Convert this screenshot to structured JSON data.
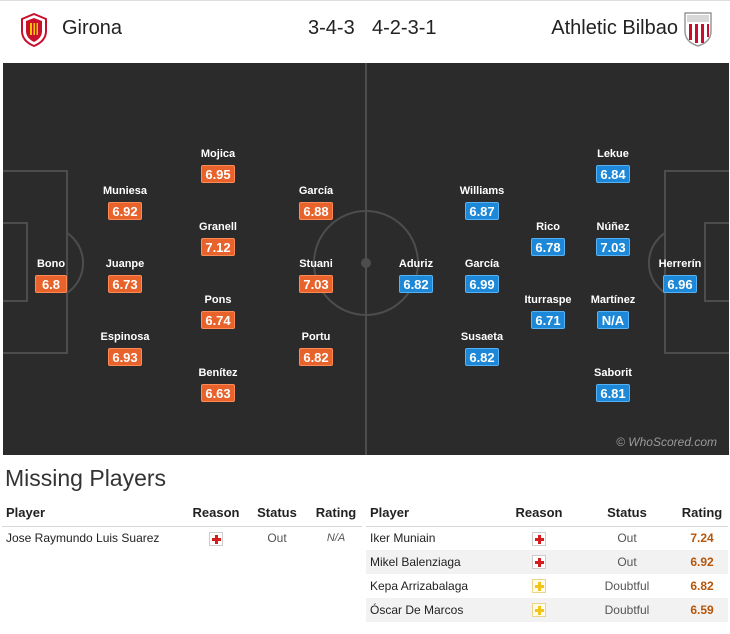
{
  "header": {
    "home_team": "Girona",
    "home_formation": "3-4-3",
    "away_formation": "4-2-3-1",
    "away_team": "Athletic Bilbao",
    "watermark": "© WhoScored.com"
  },
  "colors": {
    "home_rating": "#e8632b",
    "away_rating": "#1e88d8",
    "pitch": "#2b2b2b"
  },
  "home_players": [
    {
      "name": "Bono",
      "rating": "6.8"
    },
    {
      "name": "Muniesa",
      "rating": "6.92"
    },
    {
      "name": "Juanpe",
      "rating": "6.73"
    },
    {
      "name": "Espinosa",
      "rating": "6.93"
    },
    {
      "name": "Mojica",
      "rating": "6.95"
    },
    {
      "name": "Granell",
      "rating": "7.12"
    },
    {
      "name": "Pons",
      "rating": "6.74"
    },
    {
      "name": "Benítez",
      "rating": "6.63"
    },
    {
      "name": "García",
      "rating": "6.88"
    },
    {
      "name": "Stuani",
      "rating": "7.03"
    },
    {
      "name": "Portu",
      "rating": "6.82"
    }
  ],
  "away_players": [
    {
      "name": "Williams",
      "rating": "6.87"
    },
    {
      "name": "Aduriz",
      "rating": "6.82"
    },
    {
      "name": "García",
      "rating": "6.99"
    },
    {
      "name": "Susaeta",
      "rating": "6.82"
    },
    {
      "name": "Rico",
      "rating": "6.78"
    },
    {
      "name": "Iturraspe",
      "rating": "6.71"
    },
    {
      "name": "Lekue",
      "rating": "6.84"
    },
    {
      "name": "Núñez",
      "rating": "7.03"
    },
    {
      "name": "Martínez",
      "rating": "N/A"
    },
    {
      "name": "Saborit",
      "rating": "6.81"
    },
    {
      "name": "Herrerín",
      "rating": "6.96"
    }
  ],
  "missing": {
    "title": "Missing Players",
    "headers": {
      "player": "Player",
      "reason": "Reason",
      "status": "Status",
      "rating": "Rating"
    },
    "home": [
      {
        "player": "Jose Raymundo Luis Suarez",
        "reason": "injury",
        "status": "Out",
        "rating": "N/A"
      }
    ],
    "away": [
      {
        "player": "Iker Muniain",
        "reason": "injury",
        "status": "Out",
        "rating": "7.24"
      },
      {
        "player": "Mikel Balenziaga",
        "reason": "injury",
        "status": "Out",
        "rating": "6.92"
      },
      {
        "player": "Kepa Arrizabalaga",
        "reason": "doubt",
        "status": "Doubtful",
        "rating": "6.82"
      },
      {
        "player": "Óscar De Marcos",
        "reason": "doubt",
        "status": "Doubtful",
        "rating": "6.59"
      }
    ]
  }
}
